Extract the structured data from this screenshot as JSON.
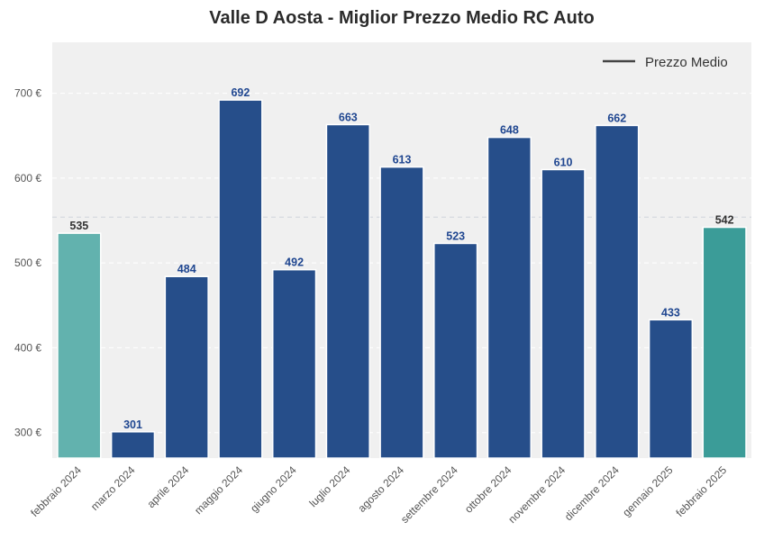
{
  "chart_data": {
    "type": "bar",
    "title": "Valle D Aosta - Miglior Prezzo Medio RC Auto",
    "categories": [
      "febbraio 2024",
      "marzo 2024",
      "aprile 2024",
      "maggio 2024",
      "giugno 2024",
      "luglio 2024",
      "agosto 2024",
      "settembre 2024",
      "ottobre 2024",
      "novembre 2024",
      "dicembre 2024",
      "gennaio 2025",
      "febbraio 2025"
    ],
    "values": [
      535,
      301,
      484,
      692,
      492,
      663,
      613,
      523,
      648,
      610,
      662,
      433,
      542
    ],
    "value_labels": [
      "535",
      "301",
      "484",
      "692",
      "492",
      "663",
      "613",
      "523",
      "648",
      "610",
      "662",
      "433",
      "542"
    ],
    "bar_colors": [
      "#62b2ae",
      "#264e8a",
      "#264e8a",
      "#264e8a",
      "#264e8a",
      "#264e8a",
      "#264e8a",
      "#264e8a",
      "#264e8a",
      "#264e8a",
      "#264e8a",
      "#264e8a",
      "#3b9c98"
    ],
    "label_colors": [
      "#333333",
      "#1f4690",
      "#1f4690",
      "#1f4690",
      "#1f4690",
      "#1f4690",
      "#1f4690",
      "#1f4690",
      "#1f4690",
      "#1f4690",
      "#1f4690",
      "#1f4690",
      "#333333"
    ],
    "mean_line": 554,
    "ylim": [
      270,
      760
    ],
    "yticks": [
      300,
      400,
      500,
      600,
      700
    ],
    "ytick_labels": [
      "300 €",
      "400 €",
      "500 €",
      "600 €",
      "700 €"
    ],
    "grid": true,
    "legend": {
      "label": "Prezzo Medio",
      "position": "top-right"
    },
    "background": "#f0f0f0"
  }
}
